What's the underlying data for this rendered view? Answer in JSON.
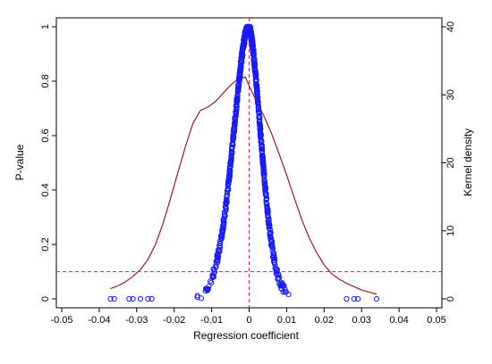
{
  "chart_data": {
    "type": "scatter",
    "title": "",
    "xlabel": "Regression coefficient",
    "ylabel_left": "P-value",
    "ylabel_right": "Kernel density",
    "xlim": [
      -0.05,
      0.05
    ],
    "ylim_left": [
      0,
      1
    ],
    "ylim_right": [
      0,
      40
    ],
    "x_ticks": [
      -0.05,
      -0.04,
      -0.03,
      -0.02,
      -0.01,
      0,
      0.01,
      0.02,
      0.03,
      0.04,
      0.05
    ],
    "x_tick_labels": [
      "-0.05",
      "-0.04",
      "-0.03",
      "-0.02",
      "-0.01",
      "0",
      "0.01",
      "0.02",
      "0.03",
      "0.04",
      "0.05"
    ],
    "y_left_ticks": [
      0,
      0.2,
      0.4,
      0.6,
      0.8,
      1
    ],
    "y_left_tick_labels": [
      "0",
      "0.2",
      "0.4",
      "0.6",
      "0.8",
      "1"
    ],
    "y_right_ticks": [
      0,
      10,
      20,
      30,
      40
    ],
    "y_right_tick_labels": [
      "0",
      "10",
      "20",
      "30",
      "40"
    ],
    "reference_lines": [
      {
        "orientation": "horizontal",
        "axis": "left",
        "value": 0.1,
        "style": "dashed",
        "color": "#e8285a"
      },
      {
        "orientation": "vertical",
        "value": 0,
        "style": "dashed",
        "color": "#e8285a"
      }
    ],
    "grid": false,
    "legend": "none",
    "series": [
      {
        "type": "scatter",
        "axis": "left",
        "color": "#1a1aff",
        "marker": "hollow-circle",
        "shape": {
          "center": -0.0002,
          "width_left": 0.0075,
          "width_right": 0.0062,
          "exponent": 1.8
        },
        "x_range": [
          -0.037,
          0.034
        ],
        "count": 900
      },
      {
        "type": "line",
        "axis": "right",
        "color": "#9b1c22",
        "x": [
          -0.037,
          -0.035,
          -0.033,
          -0.031,
          -0.029,
          -0.027,
          -0.025,
          -0.023,
          -0.021,
          -0.019,
          -0.017,
          -0.015,
          -0.013,
          -0.011,
          -0.009,
          -0.007,
          -0.005,
          -0.003,
          -0.001,
          0,
          0.002,
          0.004,
          0.006,
          0.008,
          0.01,
          0.012,
          0.014,
          0.016,
          0.018,
          0.02,
          0.022,
          0.024,
          0.026,
          0.028,
          0.03,
          0.032,
          0.034
        ],
        "y": [
          1.5,
          1.9,
          2.5,
          3.3,
          4.3,
          5.8,
          8.0,
          11.0,
          14.7,
          18.6,
          22.4,
          25.8,
          27.7,
          28.2,
          29.0,
          30.2,
          31.4,
          32.3,
          32.6,
          31.3,
          29.0,
          26.8,
          24.3,
          21.3,
          18.2,
          14.9,
          11.7,
          9.0,
          6.8,
          5.0,
          3.7,
          2.9,
          2.3,
          1.8,
          1.3,
          1.0,
          0.7
        ]
      }
    ]
  }
}
